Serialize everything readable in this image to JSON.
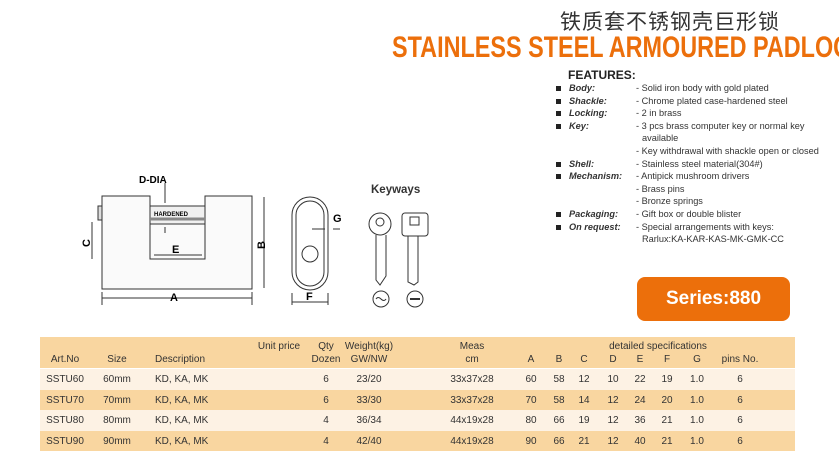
{
  "header": {
    "title_cn": "铁质套不锈钢壳巨形锁",
    "title_en": "STAINLESS STEEL ARMOURED PADLOCK"
  },
  "features": {
    "title": "FEATURES:",
    "items": [
      {
        "label": "Body:",
        "lines": [
          "- Solid iron body with gold plated"
        ]
      },
      {
        "label": "Shackle:",
        "lines": [
          "- Chrome plated case-hardened steel"
        ]
      },
      {
        "label": "Locking:",
        "lines": [
          "- 2 in brass"
        ]
      },
      {
        "label": "Key:",
        "lines": [
          "- 3 pcs brass computer key or normal key",
          "  available",
          "- Key withdrawal with shackle open or closed"
        ]
      },
      {
        "label": "Shell:",
        "lines": [
          "- Stainless steel material(304#)"
        ]
      },
      {
        "label": "Mechanism:",
        "lines": [
          "- Antipick mushroom drivers",
          "- Brass pins",
          "- Bronze springs"
        ]
      },
      {
        "label": "Packaging:",
        "lines": [
          "- Gift box or double blister"
        ]
      },
      {
        "label": "On request:",
        "lines": [
          "- Special arrangements with keys:",
          "  Rarlux:KA-KAR-KAS-MK-GMK-CC"
        ]
      }
    ]
  },
  "diagram": {
    "labels": {
      "d_dia": "D-DIA",
      "hardened": "HARDENED",
      "a": "A",
      "b": "B",
      "c": "C",
      "e": "E",
      "f": "F",
      "g": "G"
    },
    "keyways_title": "Keyways"
  },
  "series_badge": "Series:880",
  "table": {
    "headers": {
      "art_no": "Art.No",
      "size": "Size",
      "description": "Description",
      "unit_price": "Unit price",
      "qty_1": "Qty",
      "qty_2": "Dozen",
      "weight_1": "Weight(kg)",
      "weight_2": "GW/NW",
      "meas_1": "Meas",
      "meas_2": "cm",
      "spec_group": "detailed specifications",
      "a": "A",
      "b": "B",
      "c": "C",
      "d": "D",
      "e": "E",
      "f": "F",
      "g": "G",
      "pins": "pins No."
    },
    "rows": [
      {
        "art_no": "SSTU60",
        "size": "60mm",
        "description": "KD, KA, MK",
        "qty": "6",
        "weight": "23/20",
        "meas": "33x37x28",
        "a": "60",
        "b": "58",
        "c": "12",
        "d": "10",
        "e": "22",
        "f": "19",
        "g": "1.0",
        "pins": "6"
      },
      {
        "art_no": "SSTU70",
        "size": "70mm",
        "description": "KD, KA, MK",
        "qty": "6",
        "weight": "33/30",
        "meas": "33x37x28",
        "a": "70",
        "b": "58",
        "c": "14",
        "d": "12",
        "e": "24",
        "f": "20",
        "g": "1.0",
        "pins": "6"
      },
      {
        "art_no": "SSTU80",
        "size": "80mm",
        "description": "KD, KA, MK",
        "qty": "4",
        "weight": "36/34",
        "meas": "44x19x28",
        "a": "80",
        "b": "66",
        "c": "19",
        "d": "12",
        "e": "36",
        "f": "21",
        "g": "1.0",
        "pins": "6"
      },
      {
        "art_no": "SSTU90",
        "size": "90mm",
        "description": "KD, KA, MK",
        "qty": "4",
        "weight": "42/40",
        "meas": "44x19x28",
        "a": "90",
        "b": "66",
        "c": "21",
        "d": "12",
        "e": "40",
        "f": "21",
        "g": "1.0",
        "pins": "6"
      }
    ]
  },
  "colors": {
    "accent": "#ec6f0b",
    "table_header": "#f9d6a0",
    "table_row_light": "#fdf2e4"
  }
}
